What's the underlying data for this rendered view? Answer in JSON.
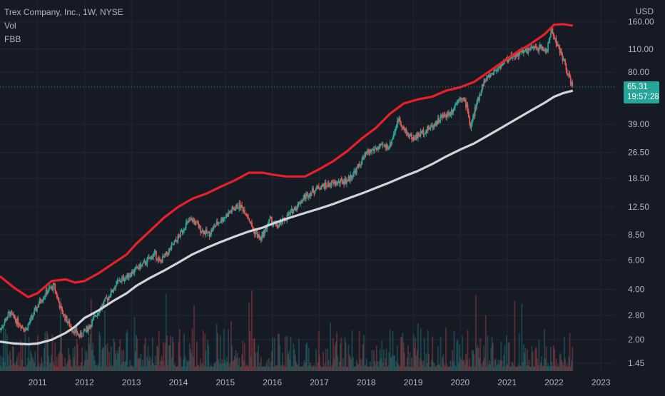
{
  "header": {
    "symbol_line": "Trex Company, Inc., 1W, NYSE",
    "indicator_vol": "Vol",
    "indicator_fbb": "FBB"
  },
  "axis": {
    "currency": "USD"
  },
  "price_badge": {
    "price": "65.31",
    "countdown": "19:57:28",
    "color": "#26a69a"
  },
  "colors": {
    "background": "#161a25",
    "upper_band": "#e8202a",
    "lower_band": "#d1d4dc",
    "up_candle": "#26a69a",
    "down_candle": "#ef5350",
    "grid": "#222633",
    "axis_text": "#b2b5be"
  },
  "chart_data": {
    "type": "line",
    "scale": "log",
    "title": "Trex Company, Inc., 1W, NYSE",
    "ylabel": "USD",
    "ylim": [
      1.3,
      200
    ],
    "xlim": [
      2010.2,
      2023.3
    ],
    "x_ticks": [
      "2011",
      "2012",
      "2013",
      "2014",
      "2015",
      "2016",
      "2017",
      "2018",
      "2019",
      "2020",
      "2021",
      "2022",
      "2023"
    ],
    "y_ticks": [
      160,
      110,
      80,
      39,
      26.5,
      18.5,
      12.5,
      8.5,
      6,
      4,
      2.8,
      2,
      1.45
    ],
    "y_tick_labels": [
      "160.00",
      "110.00",
      "80.00",
      "39.00",
      "26.50",
      "18.50",
      "12.50",
      "8.50",
      "6.00",
      "4.00",
      "2.80",
      "2.00",
      "1.45"
    ],
    "last_price": 65.31,
    "series": [
      {
        "x": [
          2010.2,
          2010.5,
          2010.8,
          2011.0,
          2011.3,
          2011.6,
          2011.8,
          2012.0,
          2012.3,
          2012.6,
          2012.9,
          2013.1,
          2013.4,
          2013.7,
          2014.0,
          2014.3,
          2014.6,
          2014.9,
          2015.2,
          2015.5,
          2015.8,
          2016.0,
          2016.3,
          2016.7,
          2017.0,
          2017.3,
          2017.6,
          2017.9,
          2018.2,
          2018.5,
          2018.8,
          2019.1,
          2019.4,
          2019.7,
          2020.0,
          2020.3,
          2020.6,
          2020.9,
          2021.2,
          2021.5,
          2021.8,
          2022.0,
          2022.2,
          2022.4
        ],
        "values": [
          4.8,
          4.1,
          3.6,
          3.8,
          4.5,
          4.6,
          4.4,
          4.5,
          5.0,
          5.7,
          6.5,
          7.5,
          9.0,
          10.8,
          12.5,
          14.0,
          15.0,
          16.5,
          18.0,
          20.0,
          20.0,
          19.5,
          19.0,
          19.0,
          21.0,
          23.5,
          27.0,
          32.0,
          37.0,
          45.0,
          52.0,
          55.0,
          57.0,
          62.0,
          65.0,
          70.0,
          80.0,
          92.0,
          105.0,
          118.0,
          135.0,
          154.0,
          155.0,
          152.0
        ]
      },
      {
        "x": [
          2010.2,
          2010.5,
          2010.8,
          2011.0,
          2011.3,
          2011.6,
          2011.8,
          2012.0,
          2012.3,
          2012.6,
          2012.9,
          2013.1,
          2013.4,
          2013.7,
          2014.0,
          2014.3,
          2014.6,
          2014.9,
          2015.2,
          2015.5,
          2015.8,
          2016.0,
          2016.3,
          2016.7,
          2017.0,
          2017.3,
          2017.6,
          2017.9,
          2018.2,
          2018.5,
          2018.8,
          2019.1,
          2019.4,
          2019.7,
          2020.0,
          2020.3,
          2020.6,
          2020.9,
          2021.2,
          2021.5,
          2021.8,
          2022.0,
          2022.2,
          2022.4
        ],
        "values": [
          1.95,
          1.9,
          1.88,
          1.9,
          2.0,
          2.2,
          2.4,
          2.7,
          3.0,
          3.4,
          3.8,
          4.2,
          4.7,
          5.2,
          5.8,
          6.5,
          7.1,
          7.7,
          8.3,
          8.9,
          9.4,
          9.9,
          10.6,
          11.5,
          12.2,
          13.0,
          14.0,
          15.0,
          16.2,
          17.5,
          19.0,
          20.5,
          22.5,
          25.0,
          27.5,
          30.0,
          33.5,
          37.5,
          42.0,
          47.0,
          52.5,
          57.0,
          60.0,
          62.0
        ]
      },
      {
        "x": [
          2010.2,
          2010.4,
          2010.55,
          2010.75,
          2010.9,
          2011.05,
          2011.2,
          2011.35,
          2011.5,
          2011.7,
          2011.9,
          2012.1,
          2012.3,
          2012.5,
          2012.7,
          2012.9,
          2013.1,
          2013.3,
          2013.5,
          2013.6,
          2013.8,
          2014.0,
          2014.15,
          2014.3,
          2014.5,
          2014.65,
          2014.8,
          2015.0,
          2015.15,
          2015.3,
          2015.45,
          2015.6,
          2015.75,
          2015.95,
          2016.1,
          2016.3,
          2016.5,
          2016.7,
          2016.85,
          2017.0,
          2017.2,
          2017.4,
          2017.6,
          2017.8,
          2018.0,
          2018.15,
          2018.3,
          2018.5,
          2018.7,
          2018.8,
          2019.0,
          2019.2,
          2019.4,
          2019.6,
          2019.8,
          2020.0,
          2020.15,
          2020.22,
          2020.3,
          2020.5,
          2020.7,
          2020.9,
          2021.1,
          2021.3,
          2021.5,
          2021.7,
          2021.85,
          2021.95,
          2022.05,
          2022.2,
          2022.35,
          2022.4
        ],
        "values": [
          2.3,
          2.9,
          2.6,
          2.3,
          2.8,
          3.4,
          3.9,
          4.2,
          3.0,
          2.4,
          2.1,
          2.4,
          3.0,
          3.6,
          4.4,
          4.8,
          5.3,
          5.8,
          6.6,
          5.8,
          6.8,
          8.2,
          9.8,
          10.5,
          9.0,
          8.6,
          9.8,
          11.0,
          12.0,
          12.8,
          11.5,
          9.0,
          8.0,
          10.5,
          9.5,
          10.8,
          12.5,
          14.5,
          15.5,
          16.5,
          17.0,
          17.5,
          18.0,
          21.0,
          26.0,
          27.5,
          28.5,
          29.0,
          43.0,
          36.0,
          32.0,
          35.0,
          38.0,
          43.0,
          46.0,
          58.0,
          50.0,
          37.0,
          46.0,
          70.0,
          80.0,
          90.0,
          100.0,
          105.0,
          110.0,
          112.0,
          108.0,
          145.0,
          120.0,
          95.0,
          70.0,
          65.31
        ]
      }
    ]
  }
}
